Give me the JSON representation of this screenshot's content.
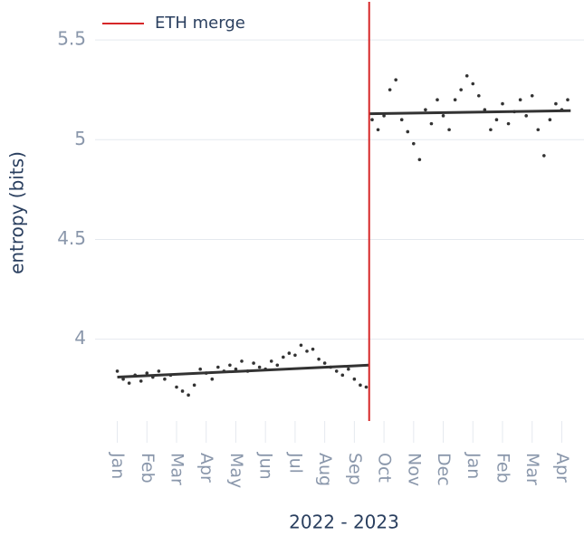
{
  "chart_data": {
    "type": "scatter",
    "x_title": "2022 - 2023",
    "y_title": "entropy (bits)",
    "xlim": [
      -0.75,
      15.75
    ],
    "ylim": [
      3.59,
      5.7
    ],
    "xticks": [
      {
        "value": 0,
        "label": "Jan"
      },
      {
        "value": 1,
        "label": "Feb"
      },
      {
        "value": 2,
        "label": "Mar"
      },
      {
        "value": 3,
        "label": "Apr"
      },
      {
        "value": 4,
        "label": "May"
      },
      {
        "value": 5,
        "label": "Jun"
      },
      {
        "value": 6,
        "label": "Jul"
      },
      {
        "value": 7,
        "label": "Aug"
      },
      {
        "value": 8,
        "label": "Sep"
      },
      {
        "value": 9,
        "label": "Oct"
      },
      {
        "value": 10,
        "label": "Nov"
      },
      {
        "value": 11,
        "label": "Dec"
      },
      {
        "value": 12,
        "label": "Jan"
      },
      {
        "value": 13,
        "label": "Feb"
      },
      {
        "value": 14,
        "label": "Mar"
      },
      {
        "value": 15,
        "label": "Apr"
      }
    ],
    "yticks": [
      4,
      4.5,
      5,
      5.5
    ],
    "grid": true,
    "legend": "top-left",
    "points": {
      "color": "#333333",
      "x": [
        0,
        0.2,
        0.4,
        0.6,
        0.8,
        1.0,
        1.2,
        1.4,
        1.6,
        1.8,
        2.0,
        2.2,
        2.4,
        2.6,
        2.8,
        3.0,
        3.2,
        3.4,
        3.6,
        3.8,
        4.0,
        4.2,
        4.4,
        4.6,
        4.8,
        5.0,
        5.2,
        5.4,
        5.6,
        5.8,
        6.0,
        6.2,
        6.4,
        6.6,
        6.8,
        7.0,
        7.2,
        7.4,
        7.6,
        7.8,
        8.0,
        8.2,
        8.4,
        8.6,
        8.8,
        9.0,
        9.2,
        9.4,
        9.6,
        9.8,
        10.0,
        10.2,
        10.4,
        10.6,
        10.8,
        11.0,
        11.2,
        11.4,
        11.6,
        11.8,
        12.0,
        12.2,
        12.4,
        12.6,
        12.8,
        13.0,
        13.2,
        13.4,
        13.6,
        13.8,
        14.0,
        14.2,
        14.4,
        14.6,
        14.8,
        15.0,
        15.2
      ],
      "values": [
        3.84,
        3.8,
        3.78,
        3.82,
        3.79,
        3.83,
        3.81,
        3.84,
        3.8,
        3.82,
        3.76,
        3.74,
        3.72,
        3.77,
        3.85,
        3.83,
        3.8,
        3.86,
        3.84,
        3.87,
        3.85,
        3.89,
        3.84,
        3.88,
        3.86,
        3.85,
        3.89,
        3.87,
        3.91,
        3.93,
        3.92,
        3.97,
        3.94,
        3.95,
        3.9,
        3.88,
        3.86,
        3.84,
        3.82,
        3.85,
        3.8,
        3.77,
        3.76,
        5.1,
        5.05,
        5.12,
        5.25,
        5.3,
        5.1,
        5.04,
        4.98,
        4.9,
        5.15,
        5.08,
        5.2,
        5.12,
        5.05,
        5.2,
        5.25,
        5.32,
        5.28,
        5.22,
        5.15,
        5.05,
        5.1,
        5.18,
        5.08,
        5.14,
        5.2,
        5.12,
        5.22,
        5.05,
        4.92,
        5.1,
        5.18,
        5.15,
        5.2
      ]
    },
    "trend": [
      {
        "color": "#333333",
        "x": [
          0,
          8.5
        ],
        "values": [
          3.81,
          3.87
        ]
      },
      {
        "color": "#333333",
        "x": [
          8.5,
          15.3
        ],
        "values": [
          5.13,
          5.145
        ]
      }
    ],
    "vline": {
      "name": "ETH merge",
      "x": 8.5,
      "color": "#d62728"
    }
  }
}
